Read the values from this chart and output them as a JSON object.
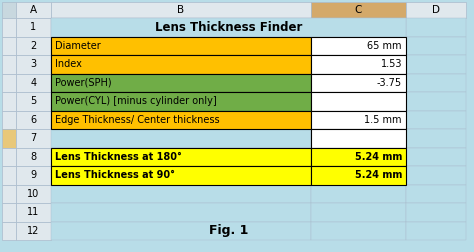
{
  "title": "Lens Thickness Finder",
  "fig1_label": "Fig. 1",
  "background_color": "#b8dde8",
  "col_headers": [
    "A",
    "B",
    "C",
    "D"
  ],
  "row_numbers": [
    "1",
    "2",
    "3",
    "4",
    "5",
    "6",
    "7",
    "8",
    "9",
    "10",
    "11",
    "12"
  ],
  "input_rows": [
    {
      "label": "Diameter",
      "value": "65 mm",
      "label_bg": "#FFC000",
      "value_bg": "#FFFFFF"
    },
    {
      "label": "Index",
      "value": "1.53",
      "label_bg": "#FFC000",
      "value_bg": "#FFFFFF"
    },
    {
      "label": "Power(SPH)",
      "value": "-3.75",
      "label_bg": "#70AD47",
      "value_bg": "#FFFFFF"
    },
    {
      "label": "Power(CYL) [minus cylinder only]",
      "value": "",
      "label_bg": "#70AD47",
      "value_bg": "#FFFFFF"
    },
    {
      "label": "Edge Thickness/ Center thickness",
      "value": "1.5 mm",
      "label_bg": "#FFC000",
      "value_bg": "#FFFFFF"
    }
  ],
  "output_rows": [
    {
      "label": "Lens Thickness at 180°",
      "value": "5.24 mm",
      "label_bg": "#FFFF00",
      "value_bg": "#FFFF00"
    },
    {
      "label": "Lens Thickness at 90°",
      "value": "5.24 mm",
      "label_bg": "#FFFF00",
      "value_bg": "#FFFF00"
    }
  ],
  "cell_border_color": "#000000",
  "grid_color": "#AABBCC",
  "header_col_bg": "#E0E8ED",
  "header_C_bg": "#D4A96A",
  "value_font_size": 7,
  "label_font_size": 7,
  "title_font_size": 8.5,
  "fig1_font_size": 9,
  "row7_white_bg": "#FFFFFF"
}
